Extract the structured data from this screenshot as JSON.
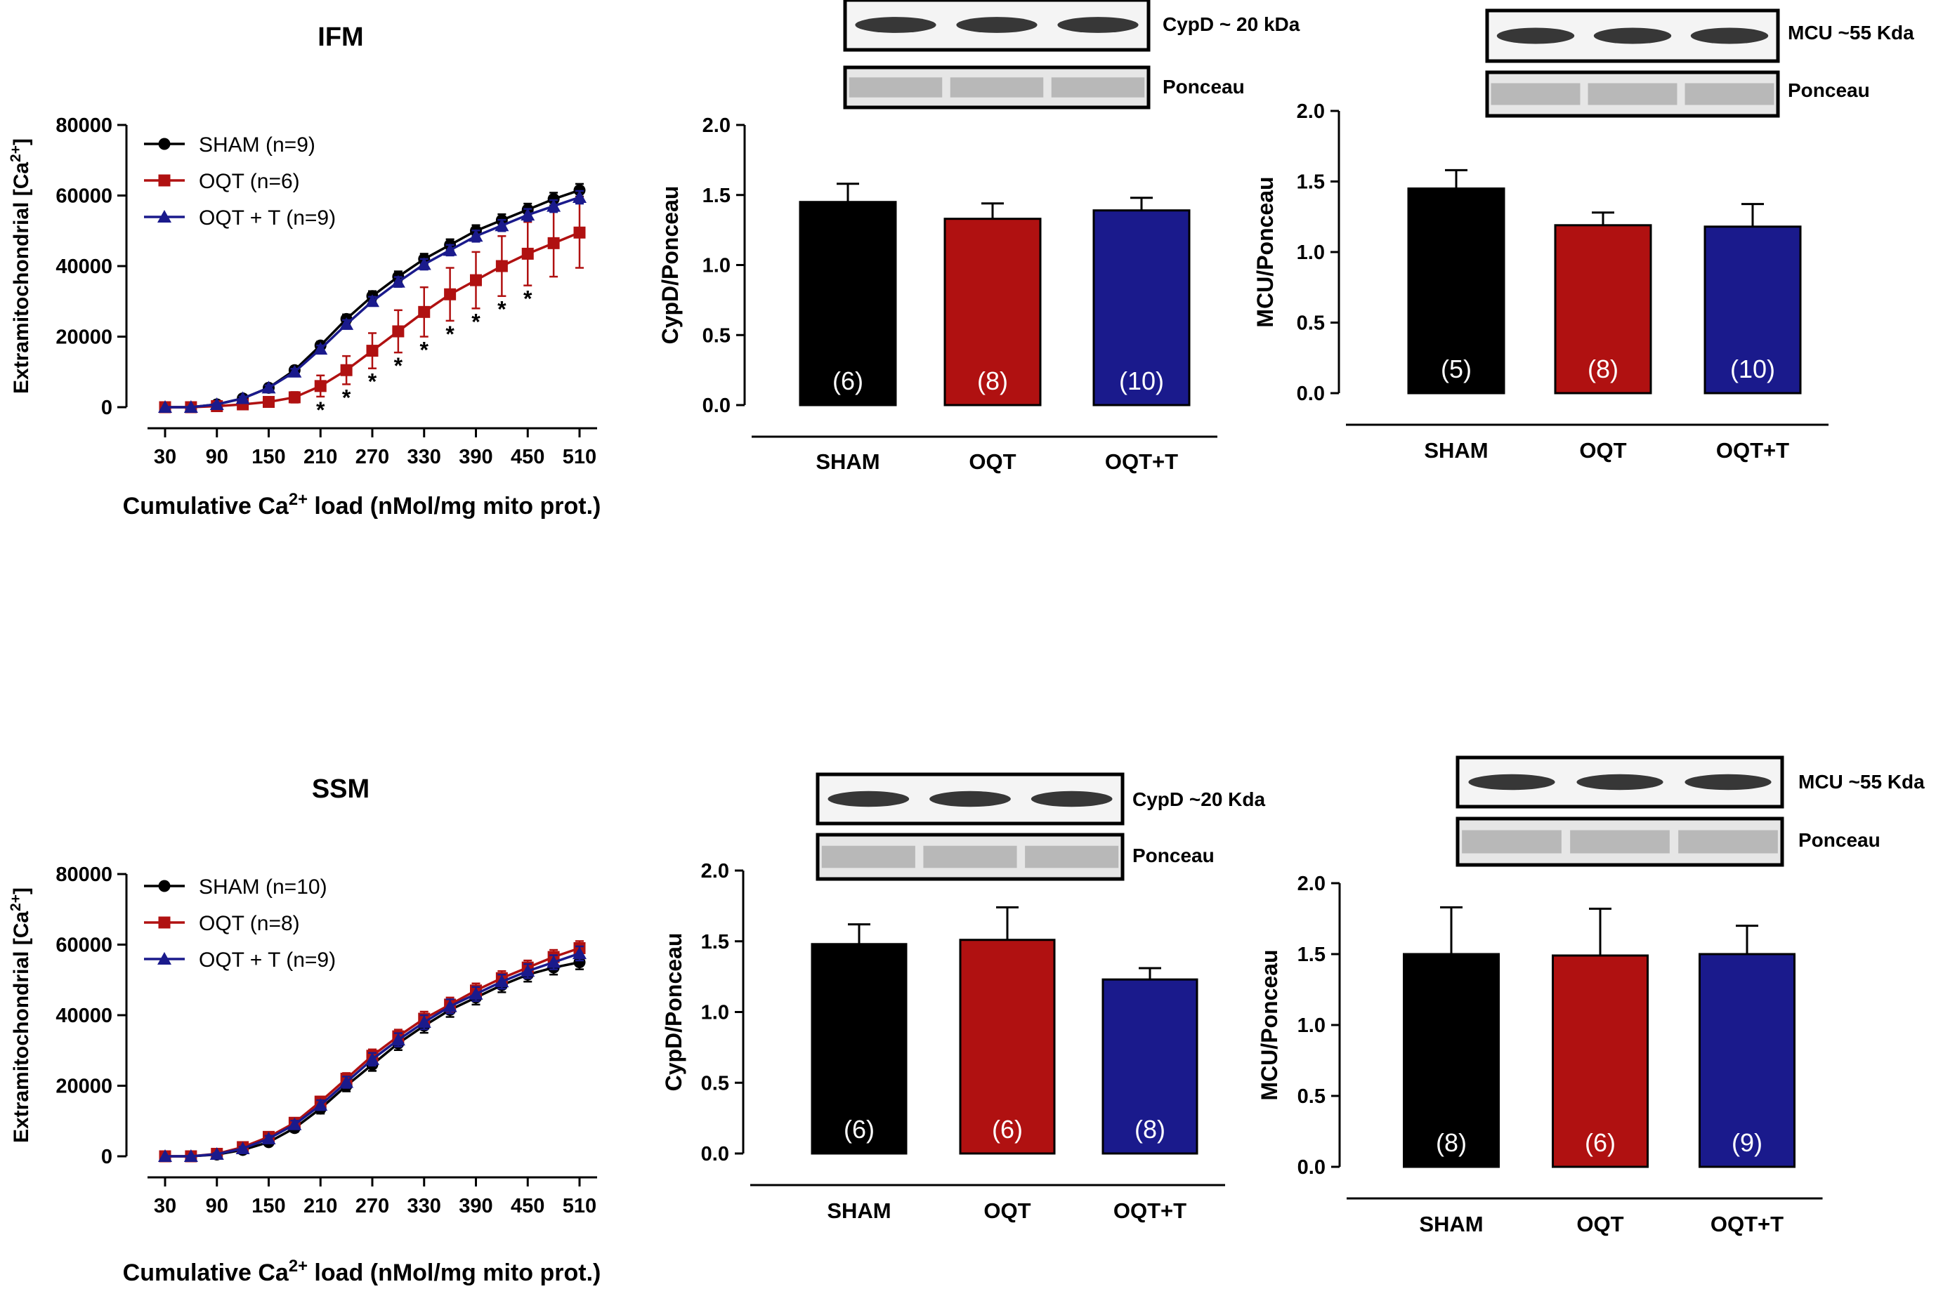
{
  "figure": {
    "colors": {
      "sham": "#000000",
      "oqt": "#b01111",
      "oqtt": "#1a1a8c",
      "axis": "#000000",
      "star": "#000000",
      "bar_label": "#ffffff"
    }
  },
  "chart_data": [
    {
      "id": "ifm-line",
      "type": "line",
      "title": "IFM",
      "ylabel": "Extramitochondrial [Ca2+]",
      "xlabel": "Cumulative Ca2+ load (nMol/mg mito prot.)",
      "xlim": [
        30,
        510
      ],
      "ylim": [
        0,
        80000
      ],
      "xticks": [
        "30",
        "90",
        "150",
        "210",
        "270",
        "330",
        "390",
        "450",
        "510"
      ],
      "yticks": [
        "0",
        "20000",
        "40000",
        "60000",
        "80000"
      ],
      "x": [
        30,
        60,
        90,
        120,
        150,
        180,
        210,
        240,
        270,
        300,
        330,
        360,
        390,
        420,
        450,
        480,
        510
      ],
      "series": [
        {
          "name": "SHAM (n=9)",
          "key": "sham",
          "marker": "circle",
          "values": [
            0,
            0,
            800,
            2500,
            5500,
            10500,
            17500,
            25000,
            31500,
            37000,
            42000,
            46000,
            50000,
            53000,
            56000,
            59000,
            61500
          ],
          "errors": [
            0,
            0,
            300,
            500,
            700,
            900,
            1100,
            1300,
            1400,
            1500,
            1500,
            1600,
            1600,
            1700,
            1700,
            1800,
            1800
          ]
        },
        {
          "name": "OQT (n=6)",
          "key": "oqt",
          "marker": "square",
          "values": [
            0,
            0,
            300,
            800,
            1500,
            2800,
            6000,
            10500,
            16000,
            21500,
            27000,
            32000,
            36000,
            40000,
            43500,
            46500,
            49500
          ],
          "errors": [
            0,
            0,
            300,
            500,
            800,
            1500,
            3000,
            4000,
            5000,
            6000,
            7000,
            7500,
            8000,
            8500,
            9000,
            9500,
            10000
          ]
        },
        {
          "name": "OQT + T (n=9)",
          "key": "oqtt",
          "marker": "triangle",
          "values": [
            0,
            0,
            800,
            2500,
            5500,
            10000,
            16500,
            23500,
            30000,
            35500,
            40500,
            44500,
            48500,
            51500,
            54500,
            57000,
            59500
          ],
          "errors": [
            0,
            0,
            300,
            500,
            700,
            900,
            1000,
            1200,
            1300,
            1400,
            1500,
            1500,
            1600,
            1600,
            1700,
            1700,
            1800
          ]
        }
      ],
      "significance": {
        "symbol": "*",
        "x": [
          210,
          240,
          270,
          300,
          330,
          360,
          390,
          420,
          450
        ]
      },
      "legend": "top-left"
    },
    {
      "id": "ifm-cypd",
      "type": "bar",
      "blot": {
        "protein_label": "CypD ~ 20 kDa",
        "ponceau_label": "Ponceau"
      },
      "ylabel": "CypD/Ponceau",
      "ylim": [
        0,
        2.0
      ],
      "yticks": [
        "0.0",
        "0.5",
        "1.0",
        "1.5",
        "2.0"
      ],
      "categories": [
        "SHAM",
        "OQT",
        "OQT+T"
      ],
      "values": [
        1.45,
        1.33,
        1.39
      ],
      "errors": [
        0.13,
        0.11,
        0.09
      ],
      "n_labels": [
        "(6)",
        "(8)",
        "(10)"
      ]
    },
    {
      "id": "ifm-mcu",
      "type": "bar",
      "blot": {
        "protein_label": "MCU ~55 Kda",
        "ponceau_label": "Ponceau"
      },
      "ylabel": "MCU/Ponceau",
      "ylim": [
        0,
        2.0
      ],
      "yticks": [
        "0.0",
        "0.5",
        "1.0",
        "1.5",
        "2.0"
      ],
      "categories": [
        "SHAM",
        "OQT",
        "OQT+T"
      ],
      "values": [
        1.45,
        1.19,
        1.18
      ],
      "errors": [
        0.13,
        0.09,
        0.16
      ],
      "n_labels": [
        "(5)",
        "(8)",
        "(10)"
      ]
    },
    {
      "id": "ssm-line",
      "type": "line",
      "title": "SSM",
      "ylabel": "Extramitochondrial [Ca2+]",
      "xlabel": "Cumulative Ca2+ load (nMol/mg mito prot.)",
      "xlim": [
        30,
        510
      ],
      "ylim": [
        0,
        80000
      ],
      "xticks": [
        "30",
        "90",
        "150",
        "210",
        "270",
        "330",
        "390",
        "450",
        "510"
      ],
      "yticks": [
        "0",
        "20000",
        "40000",
        "60000",
        "80000"
      ],
      "x": [
        30,
        60,
        90,
        120,
        150,
        180,
        210,
        240,
        270,
        300,
        330,
        360,
        390,
        420,
        450,
        480,
        510
      ],
      "series": [
        {
          "name": "SHAM (n=10)",
          "key": "sham",
          "marker": "circle",
          "values": [
            0,
            0,
            500,
            1800,
            4000,
            8000,
            13500,
            20000,
            26000,
            32000,
            37000,
            41500,
            45000,
            48500,
            51500,
            53500,
            55000
          ],
          "errors": [
            0,
            0,
            300,
            500,
            800,
            1100,
            1400,
            1600,
            1800,
            1900,
            2000,
            2000,
            2000,
            2000,
            2000,
            2000,
            2000
          ]
        },
        {
          "name": "OQT (n=8)",
          "key": "oqt",
          "marker": "square",
          "values": [
            0,
            0,
            700,
            2600,
            5500,
            9500,
            15500,
            22000,
            28500,
            34000,
            39000,
            43000,
            47000,
            50500,
            53500,
            56500,
            59000
          ],
          "errors": [
            0,
            0,
            300,
            500,
            800,
            1100,
            1400,
            1600,
            1800,
            1900,
            2000,
            2000,
            2000,
            2000,
            2000,
            2000,
            2000
          ]
        },
        {
          "name": "OQT + T (n=9)",
          "key": "oqtt",
          "marker": "triangle",
          "values": [
            0,
            0,
            600,
            2200,
            5000,
            9000,
            14500,
            21000,
            27500,
            33000,
            38000,
            42500,
            46000,
            49500,
            52500,
            55000,
            57500
          ],
          "errors": [
            0,
            0,
            300,
            500,
            800,
            1100,
            1400,
            1600,
            1800,
            1900,
            2000,
            2000,
            2000,
            2000,
            2000,
            2000,
            2000
          ]
        }
      ],
      "legend": "top-left"
    },
    {
      "id": "ssm-cypd",
      "type": "bar",
      "blot": {
        "protein_label": "CypD ~20 Kda",
        "ponceau_label": "Ponceau"
      },
      "ylabel": "CypD/Ponceau",
      "ylim": [
        0,
        2.0
      ],
      "yticks": [
        "0.0",
        "0.5",
        "1.0",
        "1.5",
        "2.0"
      ],
      "categories": [
        "SHAM",
        "OQT",
        "OQT+T"
      ],
      "values": [
        1.48,
        1.51,
        1.23
      ],
      "errors": [
        0.14,
        0.23,
        0.08
      ],
      "n_labels": [
        "(6)",
        "(6)",
        "(8)"
      ]
    },
    {
      "id": "ssm-mcu",
      "type": "bar",
      "blot": {
        "protein_label": "MCU ~55 Kda",
        "ponceau_label": "Ponceau"
      },
      "ylabel": "MCU/Ponceau",
      "ylim": [
        0,
        2.0
      ],
      "yticks": [
        "0.0",
        "0.5",
        "1.0",
        "1.5",
        "2.0"
      ],
      "categories": [
        "SHAM",
        "OQT",
        "OQT+T"
      ],
      "values": [
        1.5,
        1.49,
        1.5
      ],
      "errors": [
        0.33,
        0.33,
        0.2
      ],
      "n_labels": [
        "(8)",
        "(6)",
        "(9)"
      ]
    }
  ]
}
